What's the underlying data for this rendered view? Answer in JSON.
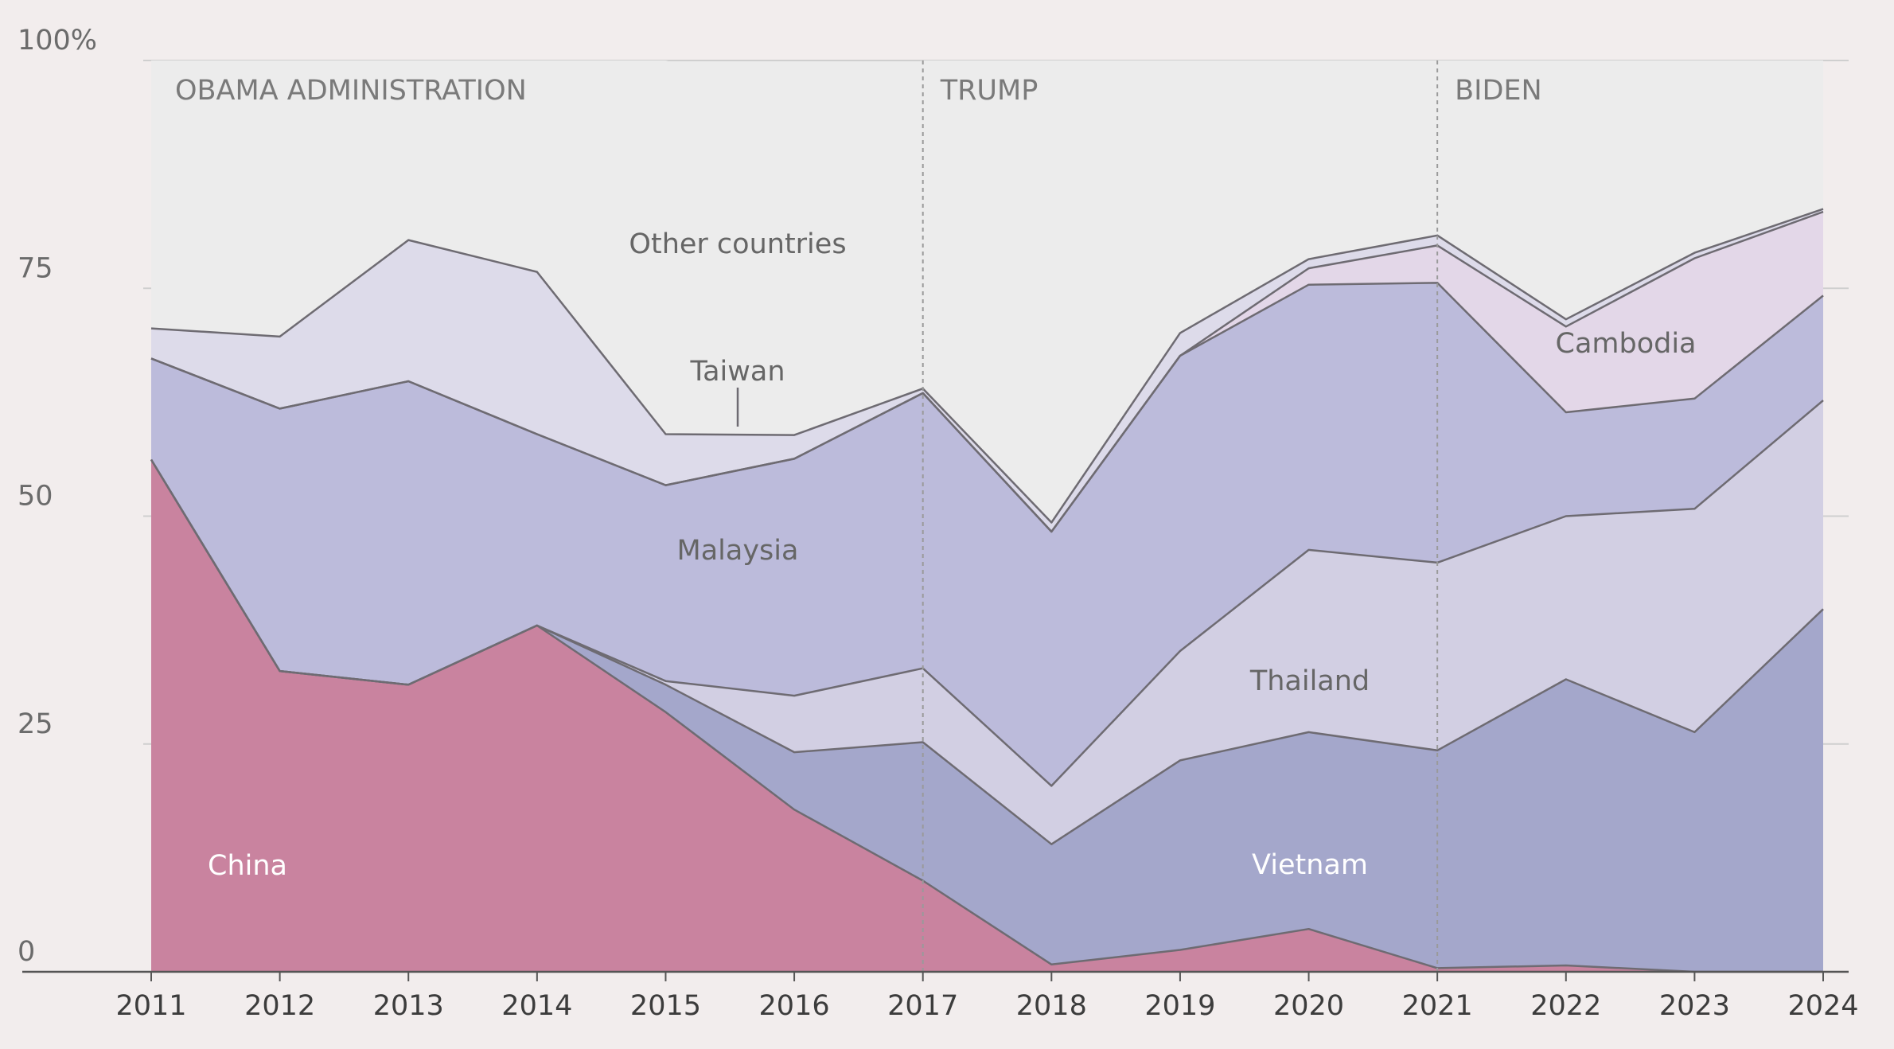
{
  "chart_data": {
    "type": "area",
    "stacking": "stacked",
    "x": [
      "2011",
      "2012",
      "2013",
      "2014",
      "2015",
      "2016",
      "2017",
      "2018",
      "2019",
      "2020",
      "2021",
      "2022",
      "2023",
      "2024"
    ],
    "y_ticks": [
      {
        "value": 0,
        "label": "0"
      },
      {
        "value": 25,
        "label": "25"
      },
      {
        "value": 50,
        "label": "50"
      },
      {
        "value": 75,
        "label": "75"
      },
      {
        "value": 100,
        "label": "100%"
      }
    ],
    "ylim": [
      0,
      100
    ],
    "grid": true,
    "series": [
      {
        "name": "China",
        "color": "#c9839f",
        "label_color": "#ffffff",
        "values": [
          56.2,
          33.0,
          31.5,
          38.0,
          28.5,
          17.8,
          10.0,
          0.8,
          2.4,
          4.7,
          0.4,
          0.7,
          0.0,
          0.0
        ]
      },
      {
        "name": "Vietnam",
        "color": "#a4a7cb",
        "label_color": "#ffffff",
        "values": [
          0.0,
          0.0,
          0.0,
          0.0,
          3.0,
          6.3,
          15.2,
          13.2,
          20.8,
          21.6,
          23.9,
          31.4,
          26.3,
          39.8
        ]
      },
      {
        "name": "Thailand",
        "color": "#d2cfe3",
        "label_color": "#666666",
        "values": [
          0.0,
          0.0,
          0.0,
          0.0,
          0.4,
          6.2,
          8.1,
          6.4,
          12.0,
          20.0,
          20.6,
          17.9,
          24.5,
          22.9
        ]
      },
      {
        "name": "Malaysia",
        "color": "#bcbbdb",
        "label_color": "#666666",
        "values": [
          11.1,
          28.8,
          33.3,
          21.0,
          21.5,
          26.0,
          30.2,
          27.9,
          32.4,
          29.1,
          30.7,
          11.4,
          12.1,
          11.5
        ]
      },
      {
        "name": "Cambodia",
        "color": "#e3d7e8",
        "label_color": "#666666",
        "values": [
          0.0,
          0.0,
          0.0,
          0.0,
          0.0,
          0.0,
          0.0,
          0.0,
          0.0,
          1.8,
          4.1,
          9.4,
          15.4,
          9.2
        ]
      },
      {
        "name": "Taiwan",
        "color": "#dddbea",
        "label_color": "#666666",
        "values": [
          3.3,
          7.9,
          15.5,
          17.8,
          5.6,
          2.6,
          0.5,
          1.0,
          2.5,
          1.0,
          1.1,
          0.8,
          0.6,
          0.3
        ]
      },
      {
        "name": "Other countries",
        "color": "#ececec",
        "label_color": "#666666",
        "values": [
          29.4,
          30.3,
          19.7,
          23.2,
          41.0,
          37.1,
          36.0,
          50.7,
          29.9,
          21.8,
          19.2,
          28.4,
          21.1,
          16.3
        ]
      }
    ],
    "series_label_text": {
      "China": "China",
      "Vietnam": "Vietnam",
      "Thailand": "Thailand",
      "Malaysia": "Malaysia",
      "Cambodia": "Cambodia",
      "Taiwan": "Taiwan",
      "Other countries": "Other countries"
    },
    "administrations": [
      {
        "label": "OBAMA ADMINISTRATION",
        "start": "2011"
      },
      {
        "label": "TRUMP",
        "start": "2017"
      },
      {
        "label": "BIDEN",
        "start": "2021"
      }
    ]
  }
}
